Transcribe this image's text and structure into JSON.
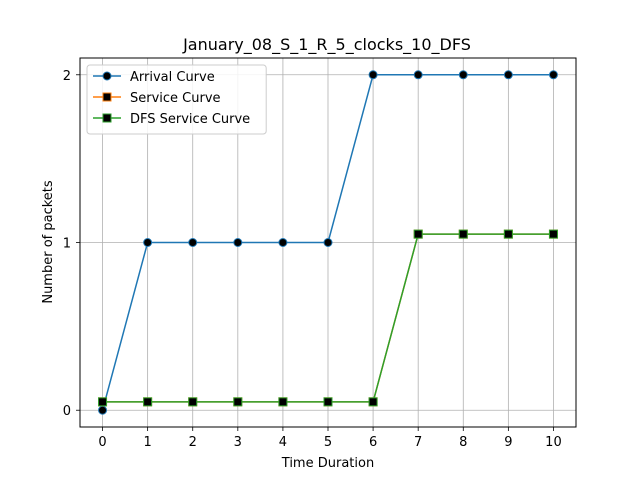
{
  "chart_data": {
    "type": "line",
    "title": "January_08_S_1_R_5_clocks_10_DFS",
    "xlabel": "Time Duration",
    "ylabel": "Number of packets",
    "xlim": [
      -0.5,
      10.5
    ],
    "ylim": [
      -0.1,
      2.1
    ],
    "xticks": [
      0,
      1,
      2,
      3,
      4,
      5,
      6,
      7,
      8,
      9,
      10
    ],
    "xtick_labels": [
      "0",
      "1",
      "2",
      "3",
      "4",
      "5",
      "6",
      "7",
      "8",
      "9",
      "10"
    ],
    "yticks": [
      0,
      1,
      2
    ],
    "ytick_labels": [
      "0",
      "1",
      "2"
    ],
    "grid": true,
    "legend_position": "top-left",
    "series": [
      {
        "name": "Arrival Curve",
        "color": "#1f77b4",
        "marker": "circle",
        "x": [
          0,
          1,
          2,
          3,
          4,
          5,
          6,
          7,
          8,
          9,
          10
        ],
        "y": [
          0,
          1,
          1,
          1,
          1,
          1,
          2,
          2,
          2,
          2,
          2
        ]
      },
      {
        "name": "Service Curve",
        "color": "#ff7f0e",
        "marker": "square",
        "x": [
          0,
          1,
          2,
          3,
          4,
          5,
          6,
          7,
          8,
          9,
          10
        ],
        "y": [
          0.05,
          0.05,
          0.05,
          0.05,
          0.05,
          0.05,
          0.05,
          1.05,
          1.05,
          1.05,
          1.05
        ]
      },
      {
        "name": "DFS Service Curve",
        "color": "#2ca02c",
        "marker": "square",
        "x": [
          0,
          1,
          2,
          3,
          4,
          5,
          6,
          7,
          8,
          9,
          10
        ],
        "y": [
          0.05,
          0.05,
          0.05,
          0.05,
          0.05,
          0.05,
          0.05,
          1.05,
          1.05,
          1.05,
          1.05
        ]
      }
    ]
  }
}
